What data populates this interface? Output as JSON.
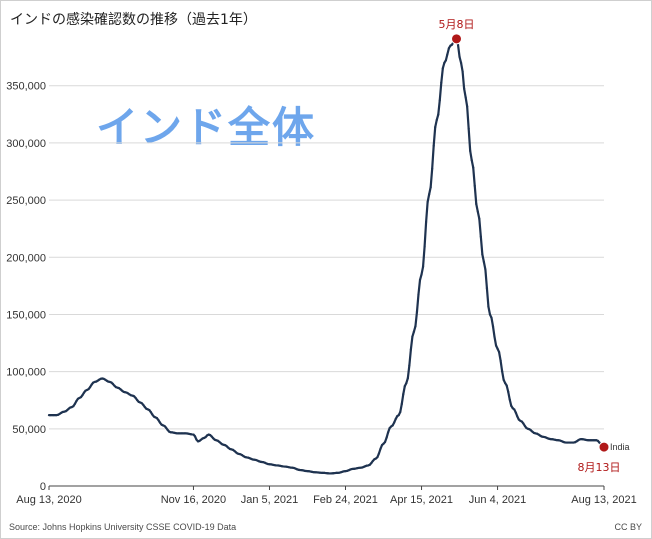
{
  "title": "インドの感染確認数の推移（過去1年）",
  "watermark": "インド全体",
  "source": "Source: Johns Hopkins University CSSE COVID-19 Data",
  "license": "CC BY",
  "colors": {
    "line": "#1f3350",
    "marker": "#b01818",
    "grid": "#d9d9d9",
    "axis": "#444444",
    "watermark": "#6ea6ec"
  },
  "chart_data": {
    "type": "line",
    "title": "インドの感染確認数の推移（過去1年）",
    "xlabel": "",
    "ylabel": "",
    "x_start": "2020-08-13",
    "x_end": "2021-08-13",
    "ylim": [
      0,
      390000
    ],
    "yticks": [
      0,
      50000,
      100000,
      150000,
      200000,
      250000,
      300000,
      350000
    ],
    "ytick_labels": [
      "0",
      "50,000",
      "100,000",
      "150,000",
      "200,000",
      "250,000",
      "300,000",
      "350,000"
    ],
    "xticks": [
      "2020-08-13",
      "2020-11-16",
      "2021-01-05",
      "2021-02-24",
      "2021-04-15",
      "2021-06-04",
      "2021-08-13"
    ],
    "xtick_labels": [
      "Aug 13, 2020",
      "Nov 16, 2020",
      "Jan 5, 2021",
      "Feb 24, 2021",
      "Apr 15, 2021",
      "Jun 4, 2021",
      "Aug 13, 2021"
    ],
    "grid": "horizontal",
    "series": [
      {
        "name": "India",
        "points": [
          [
            "2020-08-13",
            62000
          ],
          [
            "2020-08-18",
            62000
          ],
          [
            "2020-08-23",
            65000
          ],
          [
            "2020-08-28",
            69000
          ],
          [
            "2020-09-02",
            77000
          ],
          [
            "2020-09-07",
            84000
          ],
          [
            "2020-09-12",
            91000
          ],
          [
            "2020-09-17",
            94000
          ],
          [
            "2020-09-22",
            91000
          ],
          [
            "2020-09-27",
            86000
          ],
          [
            "2020-10-02",
            82000
          ],
          [
            "2020-10-07",
            79000
          ],
          [
            "2020-10-12",
            73000
          ],
          [
            "2020-10-17",
            67000
          ],
          [
            "2020-10-22",
            60000
          ],
          [
            "2020-10-27",
            53000
          ],
          [
            "2020-11-01",
            47000
          ],
          [
            "2020-11-06",
            46000
          ],
          [
            "2020-11-11",
            46000
          ],
          [
            "2020-11-16",
            45000
          ],
          [
            "2020-11-19",
            39000
          ],
          [
            "2020-11-23",
            42000
          ],
          [
            "2020-11-26",
            45000
          ],
          [
            "2020-12-01",
            40000
          ],
          [
            "2020-12-06",
            36000
          ],
          [
            "2020-12-11",
            32000
          ],
          [
            "2020-12-16",
            28000
          ],
          [
            "2020-12-21",
            25000
          ],
          [
            "2020-12-26",
            23000
          ],
          [
            "2020-12-31",
            21000
          ],
          [
            "2021-01-05",
            19000
          ],
          [
            "2021-01-10",
            18000
          ],
          [
            "2021-01-15",
            17000
          ],
          [
            "2021-01-20",
            16000
          ],
          [
            "2021-01-25",
            14000
          ],
          [
            "2021-01-30",
            13000
          ],
          [
            "2021-02-04",
            12000
          ],
          [
            "2021-02-09",
            11500
          ],
          [
            "2021-02-14",
            11000
          ],
          [
            "2021-02-19",
            11500
          ],
          [
            "2021-02-24",
            13000
          ],
          [
            "2021-03-01",
            15000
          ],
          [
            "2021-03-06",
            16000
          ],
          [
            "2021-03-11",
            18000
          ],
          [
            "2021-03-16",
            24000
          ],
          [
            "2021-03-21",
            37000
          ],
          [
            "2021-03-26",
            52000
          ],
          [
            "2021-03-31",
            62000
          ],
          [
            "2021-04-05",
            90000
          ],
          [
            "2021-04-10",
            135000
          ],
          [
            "2021-04-15",
            185000
          ],
          [
            "2021-04-20",
            255000
          ],
          [
            "2021-04-25",
            320000
          ],
          [
            "2021-04-30",
            370000
          ],
          [
            "2021-05-04",
            385000
          ],
          [
            "2021-05-08",
            391000
          ],
          [
            "2021-05-11",
            370000
          ],
          [
            "2021-05-14",
            340000
          ],
          [
            "2021-05-18",
            285000
          ],
          [
            "2021-05-22",
            240000
          ],
          [
            "2021-05-26",
            196000
          ],
          [
            "2021-05-30",
            150000
          ],
          [
            "2021-06-04",
            120000
          ],
          [
            "2021-06-09",
            90000
          ],
          [
            "2021-06-14",
            68000
          ],
          [
            "2021-06-19",
            57000
          ],
          [
            "2021-06-24",
            50000
          ],
          [
            "2021-06-29",
            46000
          ],
          [
            "2021-07-04",
            43000
          ],
          [
            "2021-07-09",
            41000
          ],
          [
            "2021-07-14",
            40000
          ],
          [
            "2021-07-19",
            38000
          ],
          [
            "2021-07-24",
            38000
          ],
          [
            "2021-07-29",
            41000
          ],
          [
            "2021-08-03",
            40000
          ],
          [
            "2021-08-08",
            40000
          ],
          [
            "2021-08-13",
            34000
          ]
        ]
      }
    ],
    "annotations": [
      {
        "date": "2021-05-08",
        "value": 391000,
        "text": "5月8日",
        "position": "above"
      },
      {
        "date": "2021-08-13",
        "value": 34000,
        "text": "8月13日",
        "position": "below"
      }
    ],
    "series_label": "India"
  }
}
